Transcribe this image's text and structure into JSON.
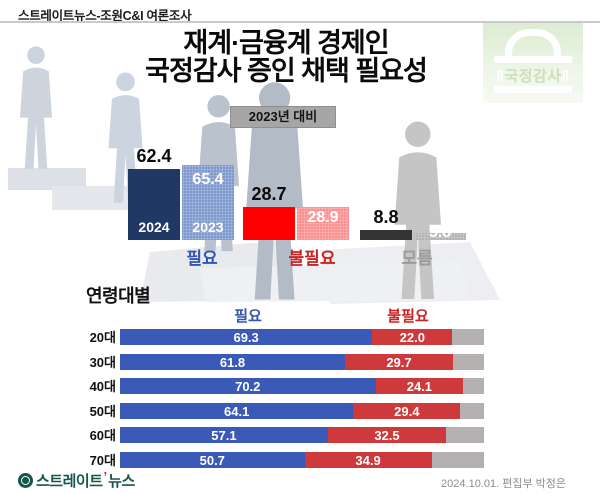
{
  "header": {
    "source_label": "스트레이트뉴스-조원C&I 여론조사"
  },
  "title": {
    "line1": "재계·금융계 경제인",
    "line2": "국정감사 증인 채택 필요성"
  },
  "stamp": {
    "text": "국정감사"
  },
  "comparison_badge": "2023년 대비",
  "chart_data": [
    {
      "type": "bar",
      "title": "재계·금융계 경제인 국정감사 증인 채택 필요성",
      "subtitle": "2023년 대비",
      "categories": [
        "필요",
        "불필요",
        "모름"
      ],
      "category_colors": [
        "#3355b5",
        "#cc2222",
        "#9b9b9b"
      ],
      "series": [
        {
          "name": "2024",
          "values": [
            62.4,
            28.7,
            8.8
          ],
          "colors": [
            "#203864",
            "#fe0000",
            "#333333"
          ]
        },
        {
          "name": "2023",
          "values": [
            65.4,
            28.9,
            5.8
          ],
          "colors": [
            "#7e99cd",
            "#fc8f8f",
            "#b3b3b3"
          ]
        }
      ],
      "unit": "%",
      "ylim": [
        0,
        70
      ],
      "legend_position": "inside-bars",
      "grid": false
    },
    {
      "type": "bar",
      "orientation": "horizontal-stacked",
      "title": "연령대별",
      "categories": [
        "20대",
        "30대",
        "40대",
        "50대",
        "60대",
        "70대"
      ],
      "series": [
        {
          "name": "필요",
          "values": [
            69.3,
            61.8,
            70.2,
            64.1,
            57.1,
            50.7
          ],
          "color": "#3b5ab8",
          "header_color": "#3355b5"
        },
        {
          "name": "불필요",
          "values": [
            22.0,
            29.7,
            24.1,
            29.4,
            32.5,
            34.9
          ],
          "color": "#ce393b",
          "header_color": "#cc2222"
        }
      ],
      "remainder_color": "#b5b1b1",
      "unit": "%",
      "xlim": [
        0,
        100
      ],
      "grid": false
    }
  ],
  "footer": {
    "logo_part1": "스트레이트",
    "logo_part2": "뉴스",
    "credit": "2024.10.01. 편집부 박정은"
  }
}
